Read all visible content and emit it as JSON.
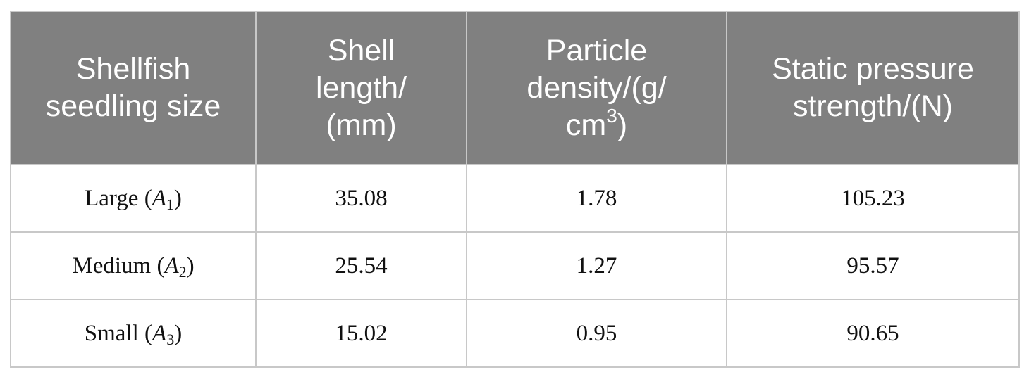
{
  "table": {
    "header": [
      [
        "Shellfish",
        "seedling size"
      ],
      [
        "Shell",
        "length/",
        "(mm)"
      ],
      [
        "Particle",
        "density/(g/",
        [
          "cm",
          "3",
          ")"
        ]
      ],
      [
        "Static pressure",
        "strength/(N)"
      ]
    ],
    "rows": [
      [
        [
          "Large (",
          "A",
          "1",
          ")"
        ],
        "35.08",
        "1.78",
        "105.23"
      ],
      [
        [
          "Medium (",
          "A",
          "2",
          ")"
        ],
        "25.54",
        "1.27",
        "95.57"
      ],
      [
        [
          "Small (",
          "A",
          "3",
          ")"
        ],
        "15.02",
        "0.95",
        "90.65"
      ]
    ]
  }
}
